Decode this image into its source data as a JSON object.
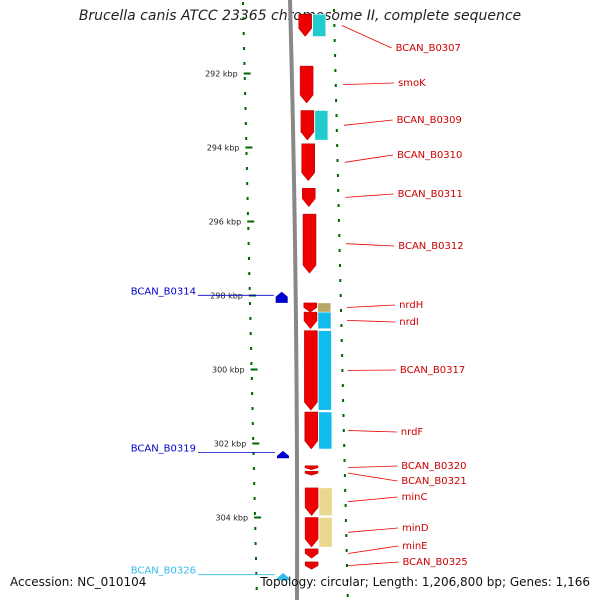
{
  "title": "Brucella canis ATCC 23365 chromosome II, complete sequence",
  "footer": {
    "accession": "Accession: NC_010104",
    "info": "Topology: circular; Length: 1,206,800 bp; Genes: 1,166"
  },
  "colors": {
    "forward_gene": "#ee0000",
    "reverse_gene": "#0000cc",
    "light_reverse_gene": "#33bbee",
    "cog_cyan": "#22cccc",
    "cog_blue": "#11bbee",
    "cog_khaki": "#e8d890",
    "cog_olive": "#b8a868",
    "backbone": "#888888",
    "tick": "#006600"
  },
  "axis": {
    "unit": "kbp",
    "ticks": [
      {
        "kbp": 292,
        "label": "292 kbp"
      },
      {
        "kbp": 294,
        "label": "294 kbp"
      },
      {
        "kbp": 296,
        "label": "296 kbp"
      },
      {
        "kbp": 298,
        "label": "298 kbp"
      },
      {
        "kbp": 300,
        "label": "300 kbp"
      },
      {
        "kbp": 302,
        "label": "302 kbp"
      },
      {
        "kbp": 304,
        "label": "304 kbp"
      }
    ]
  },
  "forward_genes": [
    {
      "name": "BCAN_B0307",
      "start": 290.4,
      "end": 291.0
    },
    {
      "name": "smoK",
      "start": 291.8,
      "end": 292.8
    },
    {
      "name": "BCAN_B0309",
      "start": 293.0,
      "end": 293.8
    },
    {
      "name": "BCAN_B0310",
      "start": 293.9,
      "end": 294.9
    },
    {
      "name": "BCAN_B0311",
      "start": 295.1,
      "end": 295.6
    },
    {
      "name": "BCAN_B0312",
      "start": 295.8,
      "end": 297.4
    },
    {
      "name": "nrdH",
      "start": 298.2,
      "end": 298.45
    },
    {
      "name": "nrdI",
      "start": 298.45,
      "end": 298.9
    },
    {
      "name": "BCAN_B0317",
      "start": 298.95,
      "end": 301.1
    },
    {
      "name": "nrdF",
      "start": 301.15,
      "end": 302.15
    },
    {
      "name": "BCAN_B0320",
      "start": 302.6,
      "end": 302.7
    },
    {
      "name": "BCAN_B0321",
      "start": 302.75,
      "end": 302.85
    },
    {
      "name": "minC",
      "start": 303.2,
      "end": 303.95
    },
    {
      "name": "minD",
      "start": 304.0,
      "end": 304.8
    },
    {
      "name": "minE",
      "start": 304.85,
      "end": 305.1
    },
    {
      "name": "BCAN_B0325",
      "start": 305.2,
      "end": 305.4
    }
  ],
  "reverse_genes": [
    {
      "name": "BCAN_B0314",
      "start": 297.9,
      "end": 298.2,
      "color": "dark"
    },
    {
      "name": "BCAN_B0319",
      "start": 302.2,
      "end": 302.4,
      "color": "dark"
    },
    {
      "name": "BCAN_B0326",
      "start": 305.5,
      "end": 305.7,
      "color": "light"
    }
  ],
  "cog_features": [
    {
      "start": 290.4,
      "end": 291.0,
      "color": "cyan"
    },
    {
      "start": 293.0,
      "end": 293.8,
      "color": "cyan"
    },
    {
      "start": 298.2,
      "end": 298.45,
      "color": "olive"
    },
    {
      "start": 298.45,
      "end": 298.9,
      "color": "blue"
    },
    {
      "start": 298.95,
      "end": 301.1,
      "color": "blue"
    },
    {
      "start": 301.15,
      "end": 302.15,
      "color": "blue"
    },
    {
      "start": 303.2,
      "end": 303.95,
      "color": "khaki"
    },
    {
      "start": 304.0,
      "end": 304.8,
      "color": "khaki"
    }
  ]
}
